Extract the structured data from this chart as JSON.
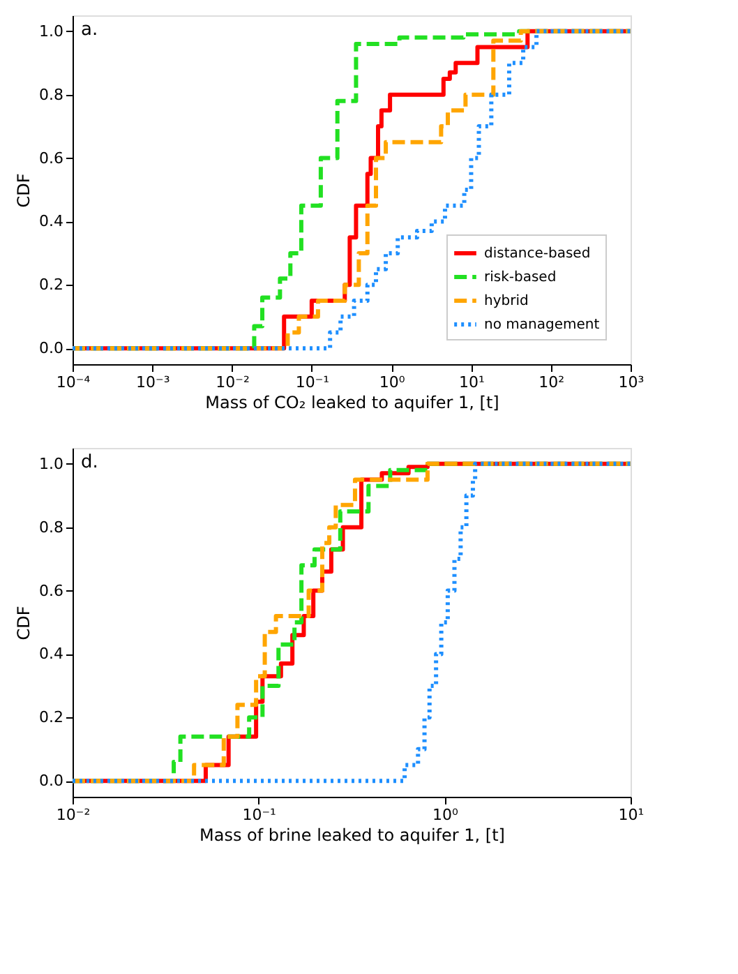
{
  "chart_data": [
    {
      "type": "step",
      "xlabel": "Mass of CO₂ leaked to aquifer 1, [t]",
      "ylabel": "CDF",
      "annotations": [
        "a."
      ],
      "log": "x",
      "grid": false,
      "legend": "bottom right",
      "xlim": [
        0.0001,
        1000
      ],
      "xticks": [
        {
          "value": 0.0001,
          "label": "10⁻⁴"
        },
        {
          "value": 0.001,
          "label": "10⁻³"
        },
        {
          "value": 0.01,
          "label": "10⁻²"
        },
        {
          "value": 0.1,
          "label": "10⁻¹"
        },
        {
          "value": 1,
          "label": "10⁰"
        },
        {
          "value": 10,
          "label": "10¹"
        },
        {
          "value": 100,
          "label": "10²"
        },
        {
          "value": 1000,
          "label": "10³"
        }
      ],
      "ylim": [
        -0.05,
        1.05
      ],
      "yticks": [
        {
          "value": 0,
          "label": "0.0"
        },
        {
          "value": 0.2,
          "label": "0.2"
        },
        {
          "value": 0.4,
          "label": "0.4"
        },
        {
          "value": 0.6,
          "label": "0.6"
        },
        {
          "value": 0.8,
          "label": "0.8"
        },
        {
          "value": 1,
          "label": "1.0"
        }
      ],
      "series": [
        {
          "name": "distance-based",
          "color": "#ff0000",
          "line_style": "solid",
          "x": [
            0.0001,
            0.04,
            0.045,
            0.1,
            0.26,
            0.3,
            0.36,
            0.5,
            0.55,
            0.68,
            0.75,
            0.96,
            4.5,
            5.4,
            6.4,
            12,
            51,
            1000
          ],
          "values": [
            0,
            0,
            0.1,
            0.15,
            0.2,
            0.35,
            0.45,
            0.55,
            0.6,
            0.7,
            0.75,
            0.8,
            0.85,
            0.87,
            0.9,
            0.95,
            1.0,
            1.0
          ]
        },
        {
          "name": "risk-based",
          "color": "#22e022",
          "line_style": "dashed",
          "x": [
            0.0001,
            0.019,
            0.024,
            0.04,
            0.054,
            0.074,
            0.13,
            0.21,
            0.36,
            1.26,
            8,
            40,
            1000
          ],
          "values": [
            0,
            0.07,
            0.16,
            0.22,
            0.3,
            0.45,
            0.6,
            0.78,
            0.96,
            0.98,
            0.99,
            1.0,
            1.0
          ]
        },
        {
          "name": "hybrid",
          "color": "#ffa500",
          "line_style": "dashed",
          "x": [
            0.0001,
            0.05,
            0.069,
            0.12,
            0.26,
            0.39,
            0.5,
            0.64,
            0.85,
            4.2,
            5.1,
            8.5,
            19,
            42,
            1000
          ],
          "values": [
            0,
            0.05,
            0.1,
            0.15,
            0.2,
            0.3,
            0.45,
            0.6,
            0.65,
            0.7,
            0.75,
            0.8,
            0.97,
            1.0,
            1.0
          ]
        },
        {
          "name": "no management",
          "color": "#1e8fff",
          "line_style": "dotted",
          "x": [
            0.0001,
            0.13,
            0.17,
            0.23,
            0.34,
            0.5,
            0.64,
            0.85,
            1.2,
            2.1,
            3.2,
            4.7,
            8.2,
            10,
            12.5,
            17.9,
            30,
            45,
            66,
            1000
          ],
          "values": [
            0,
            0,
            0.05,
            0.1,
            0.15,
            0.2,
            0.25,
            0.3,
            0.35,
            0.37,
            0.4,
            0.45,
            0.5,
            0.6,
            0.7,
            0.8,
            0.9,
            0.95,
            1.0,
            1.0
          ]
        }
      ]
    },
    {
      "type": "step",
      "xlabel": "Mass of brine leaked to aquifer 1, [t]",
      "ylabel": "CDF",
      "annotations": [
        "d."
      ],
      "log": "x",
      "grid": false,
      "xlim": [
        0.01,
        10
      ],
      "xticks": [
        {
          "value": 0.01,
          "label": "10⁻²"
        },
        {
          "value": 0.1,
          "label": "10⁻¹"
        },
        {
          "value": 1,
          "label": "10⁰"
        },
        {
          "value": 10,
          "label": "10¹"
        }
      ],
      "ylim": [
        -0.05,
        1.05
      ],
      "yticks": [
        {
          "value": 0,
          "label": "0.0"
        },
        {
          "value": 0.2,
          "label": "0.2"
        },
        {
          "value": 0.4,
          "label": "0.4"
        },
        {
          "value": 0.6,
          "label": "0.6"
        },
        {
          "value": 0.8,
          "label": "0.8"
        },
        {
          "value": 1,
          "label": "1.0"
        }
      ],
      "series": [
        {
          "color": "#ff0000",
          "line_style": "solid",
          "x": [
            0.01,
            0.052,
            0.069,
            0.097,
            0.105,
            0.132,
            0.152,
            0.175,
            0.197,
            0.22,
            0.246,
            0.284,
            0.357,
            0.46,
            0.64,
            0.81,
            10
          ],
          "values": [
            0,
            0.05,
            0.14,
            0.25,
            0.33,
            0.37,
            0.46,
            0.52,
            0.6,
            0.66,
            0.73,
            0.8,
            0.95,
            0.97,
            0.99,
            1.0,
            1.0
          ]
        },
        {
          "color": "#22e022",
          "line_style": "dashed",
          "x": [
            0.01,
            0.035,
            0.038,
            0.089,
            0.105,
            0.128,
            0.156,
            0.17,
            0.2,
            0.275,
            0.39,
            0.51,
            0.81,
            10
          ],
          "values": [
            0,
            0.06,
            0.14,
            0.2,
            0.3,
            0.43,
            0.5,
            0.68,
            0.73,
            0.85,
            0.93,
            0.98,
            1.0,
            1.0
          ]
        },
        {
          "color": "#ffa500",
          "line_style": "dashed",
          "x": [
            0.01,
            0.045,
            0.055,
            0.065,
            0.077,
            0.097,
            0.108,
            0.124,
            0.186,
            0.22,
            0.24,
            0.26,
            0.33,
            0.81,
            10
          ],
          "values": [
            0,
            0.05,
            0.05,
            0.14,
            0.24,
            0.33,
            0.47,
            0.52,
            0.6,
            0.75,
            0.8,
            0.87,
            0.95,
            1.0,
            1.0
          ]
        },
        {
          "color": "#1e8fff",
          "line_style": "dotted",
          "x": [
            0.01,
            0.51,
            0.61,
            0.72,
            0.78,
            0.83,
            0.9,
            0.96,
            1.04,
            1.13,
            1.22,
            1.31,
            1.42,
            1.46,
            10
          ],
          "values": [
            0,
            0,
            0.05,
            0.1,
            0.2,
            0.3,
            0.4,
            0.5,
            0.6,
            0.7,
            0.8,
            0.9,
            0.95,
            1.0,
            1.0
          ]
        }
      ]
    }
  ]
}
